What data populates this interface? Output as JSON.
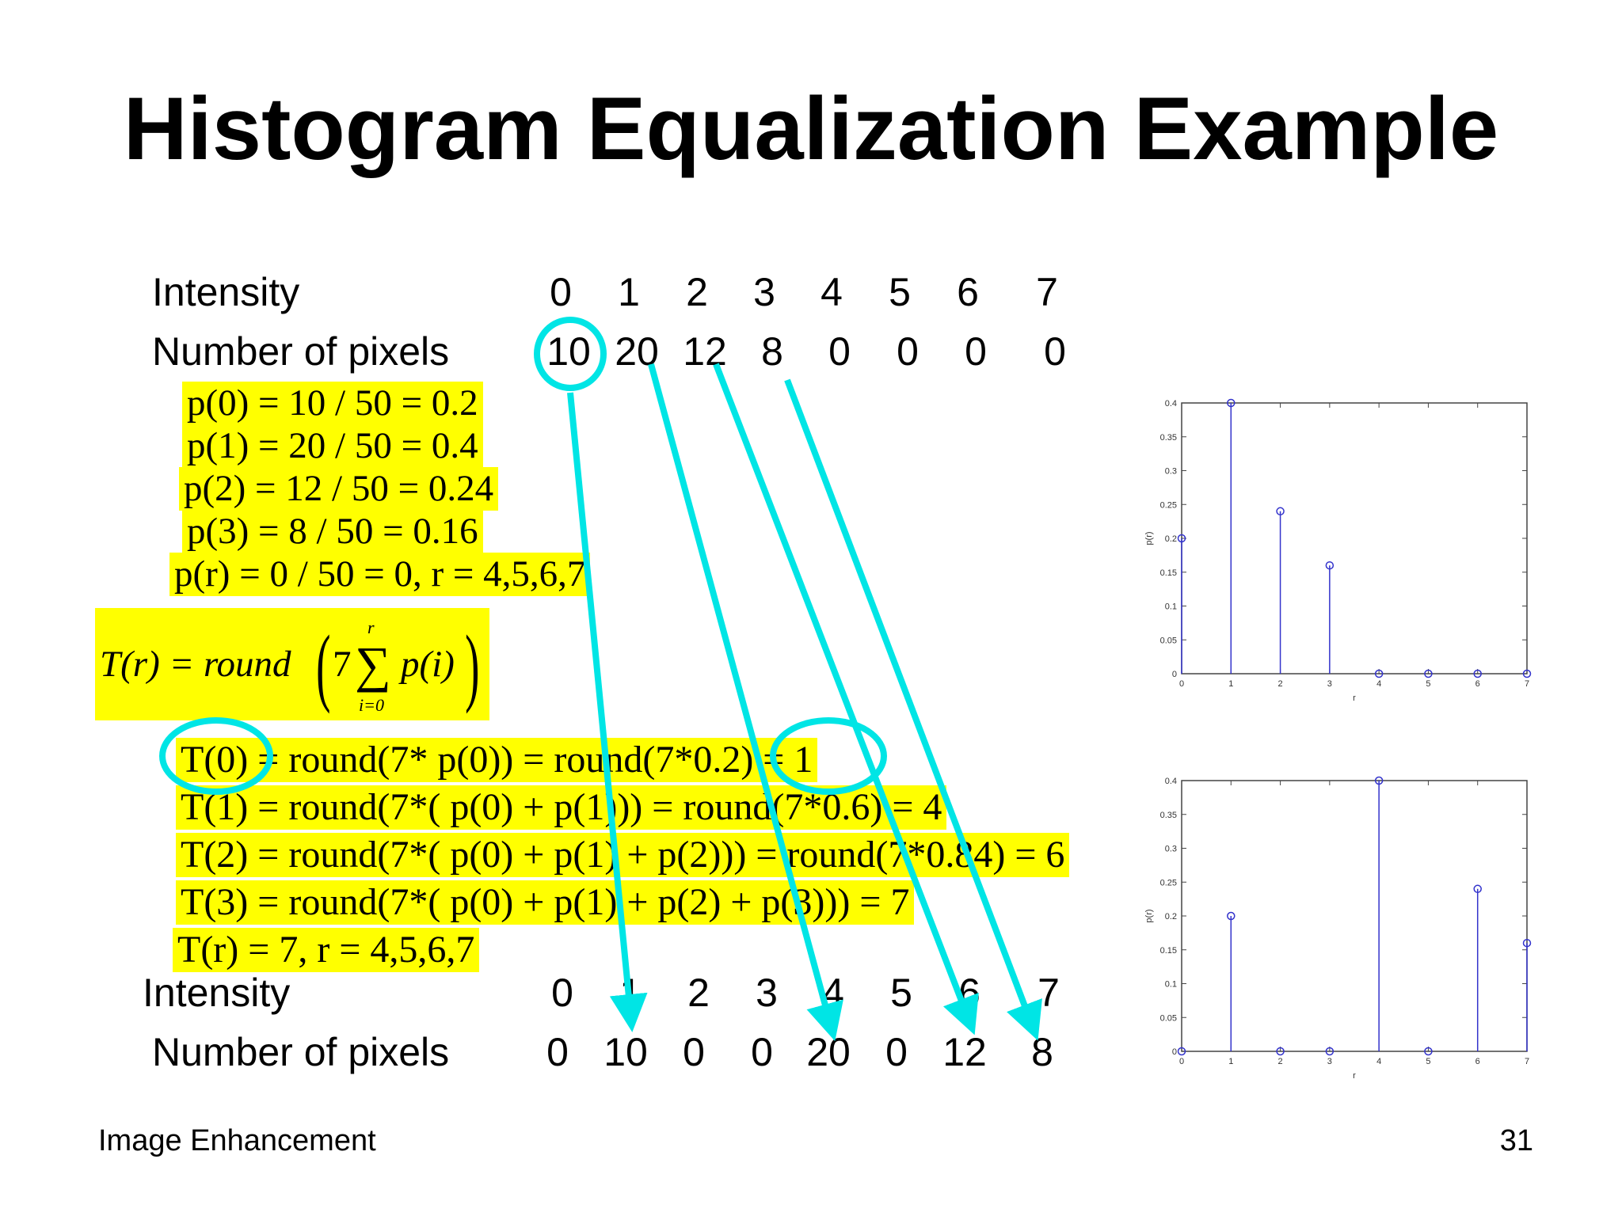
{
  "title": "Histogram Equalization Example",
  "top_table": {
    "intensity_label": "Intensity",
    "pixels_label": "Number of pixels",
    "intensity": [
      "0",
      "1",
      "2",
      "3",
      "4",
      "5",
      "6",
      "7"
    ],
    "pixels": [
      "10",
      "20",
      "12",
      "8",
      "0",
      "0",
      "0",
      "0"
    ]
  },
  "probabilities": [
    "p(0) = 10 / 50 = 0.2",
    "p(1) = 20 / 50 = 0.4",
    "p(2) = 12 / 50 = 0.24",
    "p(3) = 8 / 50 = 0.16",
    "p(r) = 0 / 50 = 0,     r = 4,5,6,7"
  ],
  "transform": {
    "lhs": "T(r) = round",
    "coef": "7",
    "sigma": "∑",
    "upper": "r",
    "lower": "i=0",
    "term": "p(i)"
  },
  "mappings": [
    "T(0) = round(7* p(0)) = round(7*0.2) = 1",
    "T(1) = round(7*( p(0) + p(1))) = round(7*0.6) = 4",
    "T(2) = round(7*( p(0) + p(1) + p(2))) = round(7*0.84) = 6",
    "T(3) = round(7*( p(0) + p(1) + p(2) + p(3))) = 7",
    "T(r) = 7,     r = 4,5,6,7"
  ],
  "bottom_table": {
    "intensity_label": "Intensity",
    "pixels_label": "Number of pixels",
    "intensity": [
      "0",
      "1",
      "2",
      "3",
      "4",
      "5",
      "6",
      "7"
    ],
    "pixels": [
      "0",
      "10",
      "0",
      "0",
      "20",
      "0",
      "12",
      "8"
    ]
  },
  "footer": {
    "left": "Image Enhancement",
    "page": "31"
  },
  "colors": {
    "highlight": "#ffff00",
    "annotation": "#00e5e5",
    "stem": "#3333cc"
  },
  "chart_data": [
    {
      "type": "stem",
      "title": "",
      "xlabel": "r",
      "ylabel": "p(r)",
      "x": [
        0,
        1,
        2,
        3,
        4,
        5,
        6,
        7
      ],
      "y": [
        0.2,
        0.4,
        0.24,
        0.16,
        0,
        0,
        0,
        0
      ],
      "xlim": [
        0,
        7
      ],
      "ylim": [
        0,
        0.4
      ],
      "yticks": [
        "0",
        "0.05",
        "0.1",
        "0.15",
        "0.2",
        "0.25",
        "0.3",
        "0.35",
        "0.4"
      ],
      "xticks": [
        "0",
        "1",
        "2",
        "3",
        "4",
        "5",
        "6",
        "7"
      ]
    },
    {
      "type": "stem",
      "title": "",
      "xlabel": "r",
      "ylabel": "p(r)",
      "x": [
        0,
        1,
        2,
        3,
        4,
        5,
        6,
        7
      ],
      "y": [
        0,
        0.2,
        0,
        0,
        0.4,
        0,
        0.24,
        0.16
      ],
      "xlim": [
        0,
        7
      ],
      "ylim": [
        0,
        0.4
      ],
      "yticks": [
        "0",
        "0.05",
        "0.1",
        "0.15",
        "0.2",
        "0.25",
        "0.3",
        "0.35",
        "0.4"
      ],
      "xticks": [
        "0",
        "1",
        "2",
        "3",
        "4",
        "5",
        "6",
        "7"
      ]
    }
  ]
}
